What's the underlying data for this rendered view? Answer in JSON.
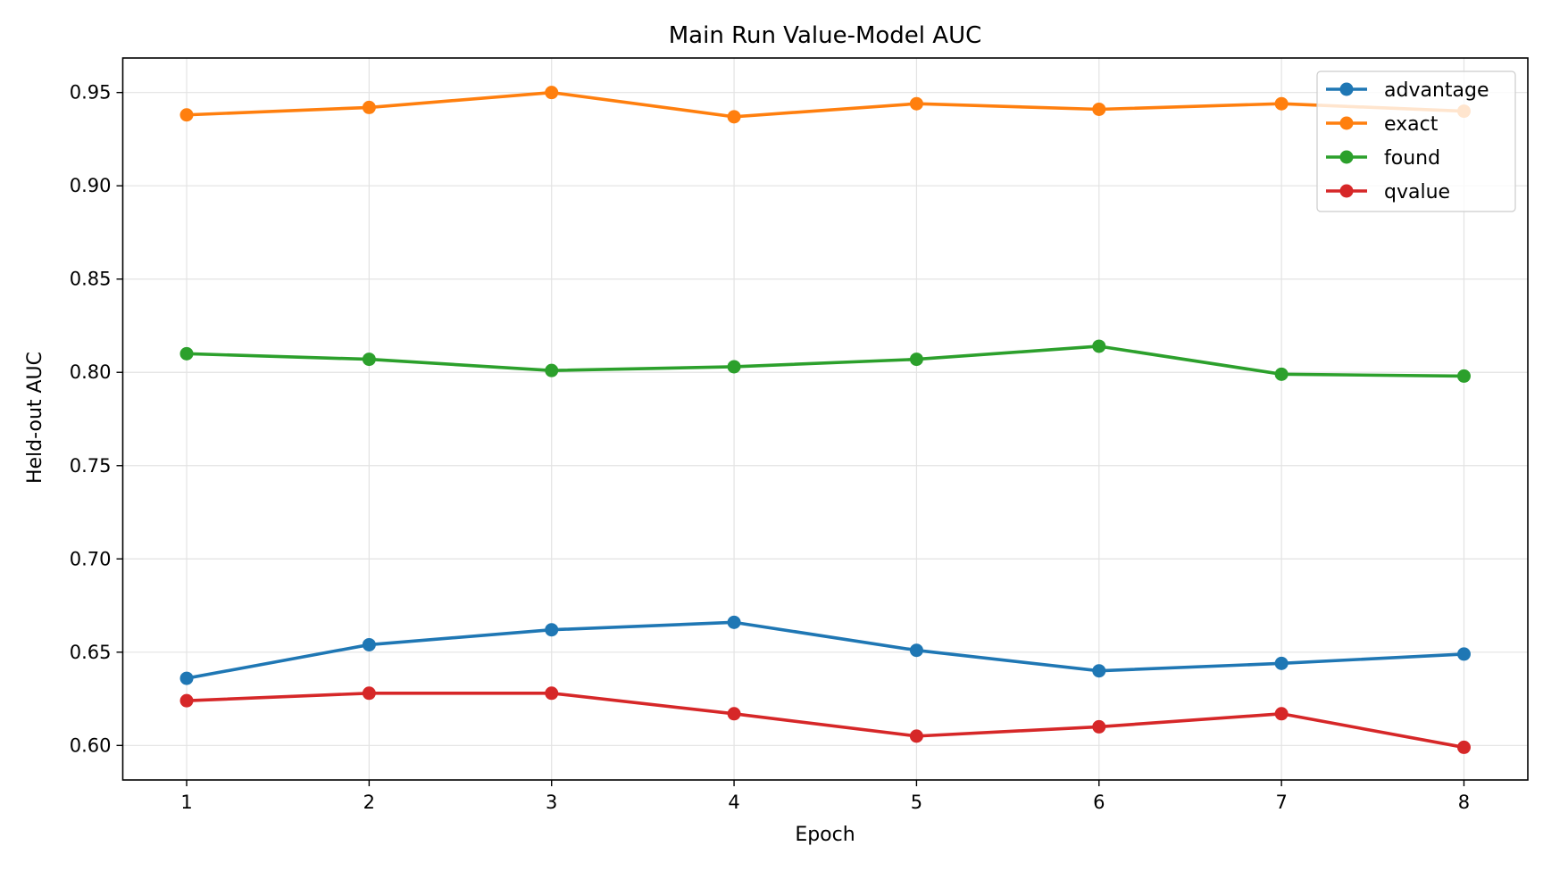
{
  "chart_data": {
    "type": "line",
    "title": "Main Run Value-Model AUC",
    "xlabel": "Epoch",
    "ylabel": "Held-out AUC",
    "x": [
      1,
      2,
      3,
      4,
      5,
      6,
      7,
      8
    ],
    "xlim": [
      0.65,
      8.35
    ],
    "ylim": [
      0.5815,
      0.9685
    ],
    "xticks": [
      1,
      2,
      3,
      4,
      5,
      6,
      7,
      8
    ],
    "yticks": [
      0.6,
      0.65,
      0.7,
      0.75,
      0.8,
      0.85,
      0.9,
      0.95
    ],
    "ytick_labels": [
      "0.60",
      "0.65",
      "0.70",
      "0.75",
      "0.80",
      "0.85",
      "0.90",
      "0.95"
    ],
    "grid": true,
    "legend_position": "top-right",
    "series": [
      {
        "name": "advantage",
        "color": "#1f77b4",
        "values": [
          0.636,
          0.654,
          0.662,
          0.666,
          0.651,
          0.64,
          0.644,
          0.649
        ]
      },
      {
        "name": "exact",
        "color": "#ff7f0e",
        "values": [
          0.938,
          0.942,
          0.95,
          0.937,
          0.944,
          0.941,
          0.944,
          0.94
        ]
      },
      {
        "name": "found",
        "color": "#2ca02c",
        "values": [
          0.81,
          0.807,
          0.801,
          0.803,
          0.807,
          0.814,
          0.799,
          0.798
        ]
      },
      {
        "name": "qvalue",
        "color": "#d62728",
        "values": [
          0.624,
          0.628,
          0.628,
          0.617,
          0.605,
          0.61,
          0.617,
          0.599
        ]
      }
    ]
  }
}
